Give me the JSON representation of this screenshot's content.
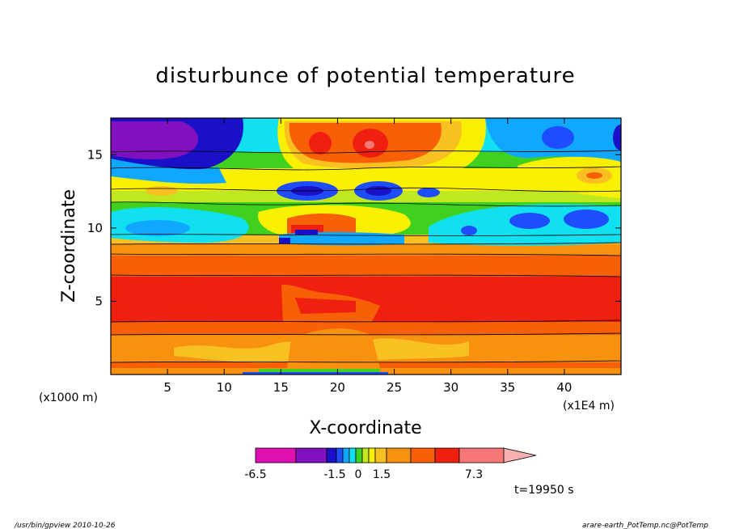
{
  "chart_data": {
    "type": "heatmap",
    "title": "disturbunce of potential temperature",
    "xlabel": "X-coordinate",
    "ylabel": "Z-coordinate",
    "x_scale_note": "(x1E4 m)",
    "y_scale_note": "(x1000 m)",
    "xlim": [
      0,
      45
    ],
    "ylim": [
      0,
      17.5
    ],
    "xticks": [
      5,
      10,
      15,
      20,
      25,
      30,
      35,
      40
    ],
    "yticks": [
      5,
      10,
      15
    ],
    "time_label": "t=19950 s",
    "colorbar": {
      "tick_labels": [
        "-6.5",
        "-1.5",
        "0",
        "1.5",
        "7.3"
      ],
      "colors": [
        "#e010b0",
        "#8010c0",
        "#1a10c8",
        "#1e4cff",
        "#10a8ff",
        "#10e0f0",
        "#40d020",
        "#c0e820",
        "#f8f000",
        "#f8c020",
        "#f89010",
        "#f86008",
        "#f02010",
        "#f87878",
        "#f8b0b0"
      ]
    },
    "layers": [
      {
        "z_range": [
          0,
          4
        ],
        "value_sign": "positive",
        "color": "#f86008"
      },
      {
        "z_range": [
          4,
          6.5
        ],
        "value_sign": "strong positive",
        "color": "#f02010"
      },
      {
        "z_range": [
          6.5,
          9
        ],
        "value_sign": "positive",
        "color": "#f86008"
      },
      {
        "z_range": [
          9,
          12
        ],
        "value_sign": "near zero / negative",
        "color": "#40d020"
      },
      {
        "z_range": [
          12,
          14.5
        ],
        "value_sign": "mixed",
        "color": "#f8f000"
      },
      {
        "z_range": [
          14.5,
          17.5
        ],
        "value_sign": "mixed",
        "color": "#10e0f0"
      }
    ]
  },
  "footer": {
    "left": "/usr/bin/gpview  2010-10-26",
    "right": "arare-earth_PotTemp.nc@PotTemp"
  }
}
